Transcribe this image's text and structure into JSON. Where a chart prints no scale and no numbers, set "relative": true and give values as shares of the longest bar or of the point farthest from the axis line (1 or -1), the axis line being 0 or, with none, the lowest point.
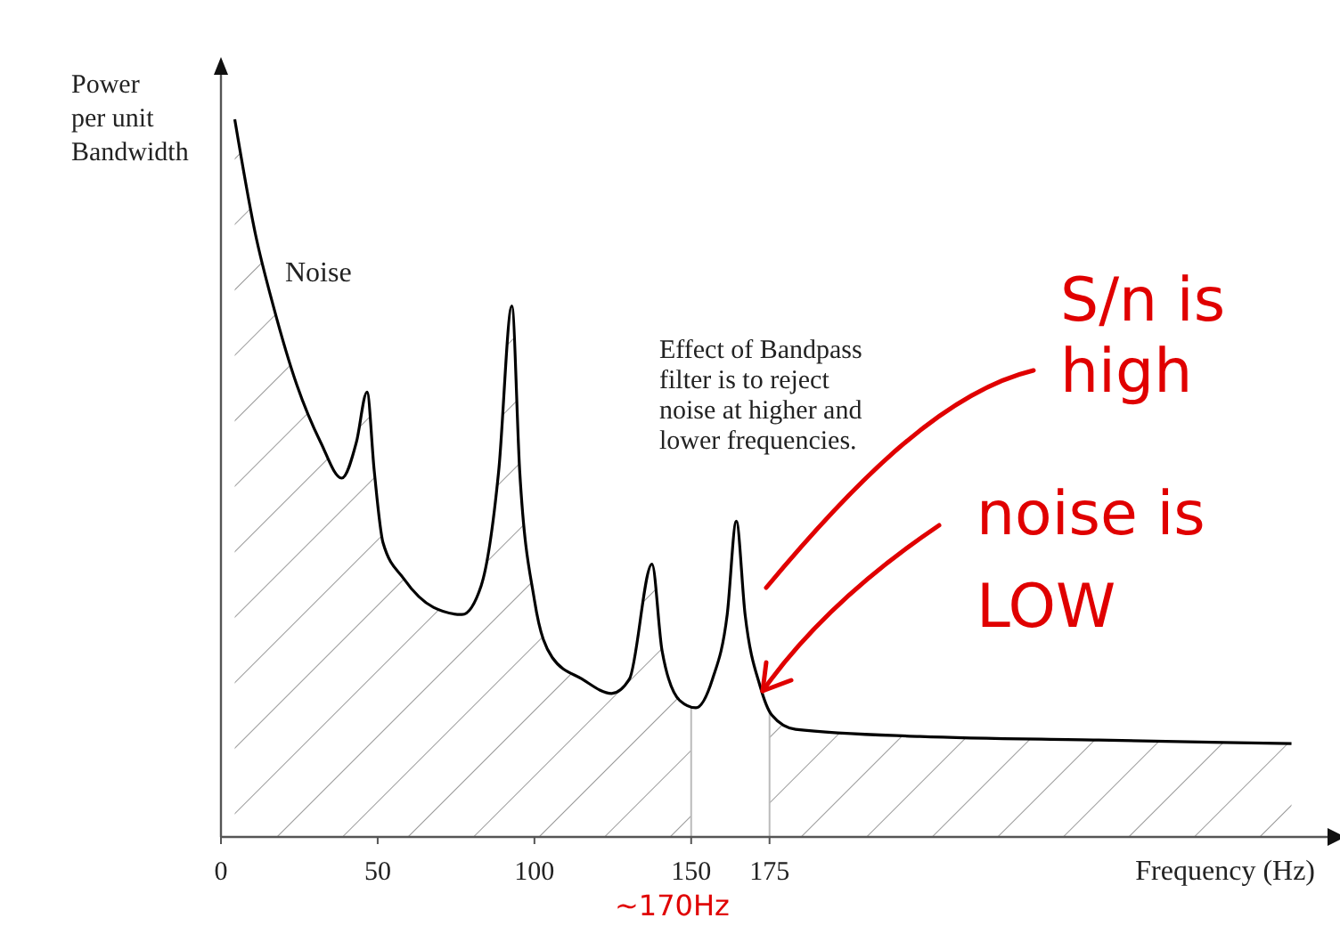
{
  "chart_data": {
    "type": "area",
    "relative": true,
    "xlabel": "Frequency (Hz)",
    "ylabel": "Power\nper unit\nBandwidth",
    "xlim": [
      0,
      353
    ],
    "xticks": [
      0,
      50,
      100,
      150,
      175
    ],
    "tick_labels": "x",
    "series": [
      {
        "color": "#000000",
        "x": [
          4.4,
          11,
          16.7,
          24.2,
          31.8,
          38.5,
          43.2,
          46.6,
          48.9,
          51.7,
          58.3,
          67.8,
          76.9,
          83,
          88.6,
          92.8,
          95.3,
          100,
          105.7,
          115.2,
          124.6,
          130.3,
          137.5,
          140.7,
          146.4,
          151.5,
          156.8,
          161.5,
          164.4,
          167.2,
          172,
          175.7,
          183.3,
          223,
          280,
          341.5
        ],
        "values": [
          1.0,
          0.84,
          0.74,
          0.63,
          0.55,
          0.5,
          0.55,
          0.62,
          0.51,
          0.41,
          0.36,
          0.32,
          0.31,
          0.35,
          0.51,
          0.74,
          0.51,
          0.33,
          0.25,
          0.22,
          0.2,
          0.22,
          0.38,
          0.26,
          0.19,
          0.18,
          0.22,
          0.31,
          0.44,
          0.31,
          0.21,
          0.17,
          0.15,
          0.14,
          0.135,
          0.13
        ]
      }
    ],
    "ref_lines": [
      {
        "axis": "x",
        "value": 150
      },
      {
        "axis": "x",
        "value": 175
      }
    ],
    "annotations": [
      "Noise",
      "Effect of Bandpass\nfilter is to reject\nnoise at higher and\nlower frequencies.",
      "S/n is\nhigh",
      "noise is\nLOW",
      "~170Hz"
    ]
  }
}
